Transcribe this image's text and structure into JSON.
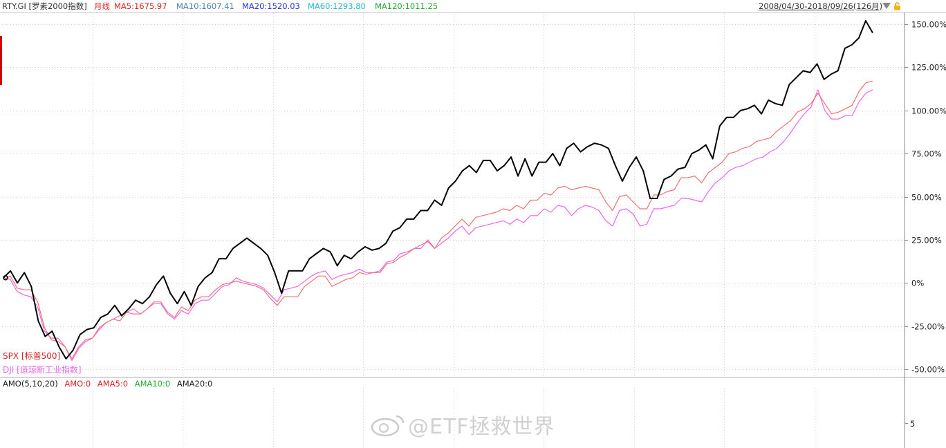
{
  "header": {
    "symbol": "RTY.GI [罗素2000指数]",
    "period": "月线",
    "ma5": "MA5:1675.97",
    "ma10": "MA10:1607.41",
    "ma20": "MA20:1520.03",
    "ma60": "MA60:1293.80",
    "ma120": "MA120:1011.25",
    "date_range": "2008/04/30-2018/09/26(126月)"
  },
  "colors": {
    "rty": "#000000",
    "spx": "#f07070",
    "dji": "#ee66ee",
    "symbol": "#333333",
    "period": "#dd2222",
    "ma5": "#dd2222",
    "ma10": "#4a7fb0",
    "ma20": "#2233dd",
    "ma60": "#22bbcc",
    "ma120": "#22aa33",
    "grid": "#d0d0d0",
    "axis": "#888888"
  },
  "legend": {
    "spx": "SPX [标普500]",
    "dji": "DJI [道琼斯工业指数]"
  },
  "amo": {
    "title": "AMO(5,10,20)",
    "amo": "AMO:0",
    "ama5": "AMA5:0",
    "ama10": "AMA10:0",
    "ama20": "AMA20:0",
    "tick": "5"
  },
  "watermark": "@ETF拯救世界",
  "chart_data": {
    "type": "line",
    "y_unit": "%",
    "ylim": [
      -50,
      150
    ],
    "yticks": [
      "150.00%",
      "125.00%",
      "100.00%",
      "75.00%",
      "50.00%",
      "25.00%",
      "0%",
      "-25.00%",
      "-50.00%"
    ],
    "ytick_values": [
      150,
      125,
      100,
      75,
      50,
      25,
      0,
      -25,
      -50
    ],
    "grid": true,
    "series": [
      {
        "name": "RTY.GI [罗素2000指数]",
        "key": "rty",
        "values": [
          3,
          7,
          0,
          6,
          -2,
          -22,
          -31,
          -28,
          -37,
          -44,
          -39,
          -30,
          -27,
          -26,
          -20,
          -18,
          -13,
          -19,
          -15,
          -10,
          -12,
          -8,
          -1,
          4,
          -6,
          -12,
          -5,
          -13,
          -2,
          3,
          6,
          14,
          14,
          20,
          23,
          26,
          23,
          20,
          16,
          6,
          -6,
          7,
          7,
          7,
          14,
          17,
          20,
          18,
          10,
          16,
          14,
          18,
          21,
          19,
          20,
          23,
          30,
          32,
          37,
          37,
          42,
          42,
          48,
          45,
          55,
          59,
          65,
          68,
          64,
          71,
          71,
          65,
          68,
          73,
          62,
          72,
          62,
          70,
          70,
          75,
          68,
          78,
          81,
          76,
          79,
          81,
          80,
          78,
          68,
          59,
          67,
          73,
          65,
          49,
          49,
          60,
          62,
          66,
          67,
          75,
          77,
          80,
          72,
          91,
          96,
          96,
          100,
          101,
          103,
          98,
          106,
          104,
          103,
          115,
          119,
          123,
          122,
          127,
          118,
          121,
          123,
          136,
          138,
          142,
          152,
          145
        ]
      },
      {
        "name": "SPX [标普500]",
        "key": "spx",
        "values": [
          2,
          4,
          -3,
          -4,
          -4,
          -11,
          -26,
          -33,
          -34,
          -37,
          -44,
          -37,
          -33,
          -32,
          -26,
          -23,
          -21,
          -22,
          -17,
          -18,
          -18,
          -15,
          -11,
          -11,
          -17,
          -20,
          -14,
          -16,
          -10,
          -8,
          -8,
          -4,
          -1,
          0,
          1,
          0,
          -1,
          -2,
          -4,
          -9,
          -13,
          -8,
          -8,
          -8,
          -2,
          1,
          4,
          4,
          -2,
          0,
          2,
          3,
          6,
          5,
          6,
          6,
          11,
          12,
          15,
          17,
          20,
          22,
          24,
          20,
          26,
          29,
          33,
          37,
          33,
          38,
          39,
          40,
          41,
          43,
          42,
          45,
          43,
          48,
          48,
          52,
          51,
          55,
          56,
          54,
          55,
          56,
          55,
          54,
          47,
          42,
          50,
          51,
          47,
          43,
          43,
          51,
          51,
          53,
          54,
          61,
          61,
          62,
          58,
          64,
          67,
          70,
          75,
          76,
          78,
          79,
          82,
          83,
          84,
          88,
          91,
          94,
          99,
          101,
          104,
          110,
          104,
          98,
          99,
          101,
          103,
          111,
          116,
          117
        ]
      },
      {
        "name": "DJI [道琼斯工业指数]",
        "key": "dji",
        "values": [
          3,
          2,
          -5,
          -7,
          -8,
          -14,
          -28,
          -32,
          -32,
          -37,
          -45,
          -38,
          -34,
          -32,
          -27,
          -23,
          -21,
          -19,
          -17,
          -15,
          -18,
          -15,
          -12,
          -12,
          -18,
          -21,
          -16,
          -18,
          -12,
          -10,
          -10,
          -6,
          -2,
          -1,
          3,
          1,
          0,
          -1,
          -3,
          -7,
          -11,
          -4,
          -3,
          -2,
          1,
          4,
          6,
          7,
          2,
          4,
          5,
          6,
          8,
          6,
          6,
          7,
          12,
          13,
          17,
          18,
          20,
          20,
          25,
          20,
          23,
          26,
          30,
          33,
          28,
          32,
          33,
          34,
          35,
          36,
          34,
          37,
          35,
          39,
          39,
          43,
          41,
          45,
          44,
          39,
          43,
          45,
          44,
          42,
          36,
          33,
          42,
          43,
          40,
          33,
          34,
          43,
          43,
          44,
          45,
          49,
          49,
          48,
          47,
          53,
          58,
          61,
          65,
          67,
          68,
          70,
          72,
          73,
          76,
          78,
          82,
          87,
          93,
          98,
          102,
          112,
          100,
          95,
          95,
          97,
          97,
          105,
          110,
          112
        ]
      }
    ]
  }
}
